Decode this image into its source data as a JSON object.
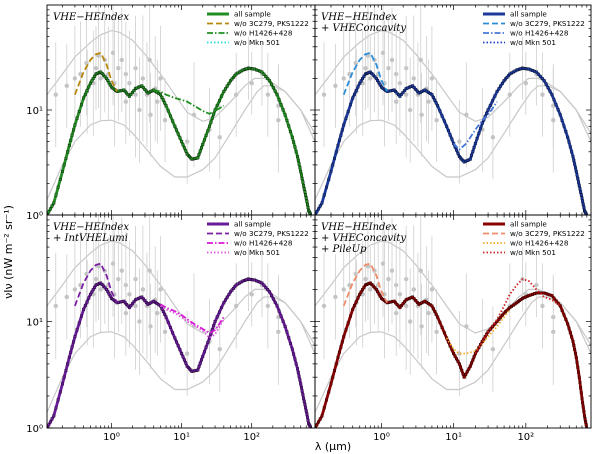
{
  "chart_data": {
    "type": "line",
    "xlabel": "λ (μm)",
    "ylabel": "νIν (nW m⁻² sr⁻¹)",
    "x_scale": "log",
    "y_scale": "log",
    "xlim": [
      0.12,
      800
    ],
    "ylim": [
      1,
      100
    ],
    "x_ticks": [
      {
        "value": 1,
        "label": "10⁰"
      },
      {
        "value": 10,
        "label": "10¹"
      },
      {
        "value": 100,
        "label": "10²"
      }
    ],
    "y_ticks": [
      {
        "value": 1,
        "label": "10⁰"
      },
      {
        "value": 10,
        "label": "10¹"
      }
    ],
    "reference_curves": {
      "color": "#c8c8c8",
      "upper_x": [
        0.12,
        0.2,
        0.3,
        0.5,
        0.7,
        1.0,
        1.3,
        2,
        3,
        5,
        8,
        12,
        20,
        30,
        50,
        80,
        110,
        150,
        200,
        300,
        500,
        800
      ],
      "upper_y": [
        14,
        22,
        32,
        44,
        52,
        57,
        55,
        46,
        34,
        22,
        14,
        9.5,
        7.8,
        8.5,
        12,
        17,
        20,
        20,
        18,
        15,
        10,
        6
      ],
      "lower_x": [
        0.12,
        0.2,
        0.3,
        0.5,
        0.7,
        1.0,
        1.5,
        2,
        3,
        5,
        8,
        12,
        20,
        30,
        50,
        80,
        120,
        150,
        200,
        300,
        500,
        800
      ],
      "lower_y": [
        1.4,
        3,
        5,
        7.2,
        7.9,
        8.0,
        7.2,
        6.0,
        4.4,
        2.9,
        2.3,
        2.3,
        2.7,
        3.5,
        6,
        10,
        15,
        17,
        17,
        15,
        10,
        5
      ],
      "points": [
        [
          0.16,
          14,
          0.5
        ],
        [
          0.23,
          17,
          0.4
        ],
        [
          0.3,
          20,
          0.5
        ],
        [
          0.36,
          22,
          0.5
        ],
        [
          0.44,
          28,
          0.5
        ],
        [
          0.45,
          15,
          0.4
        ],
        [
          0.55,
          18,
          0.5
        ],
        [
          0.6,
          25,
          0.4
        ],
        [
          0.65,
          33,
          0.5
        ],
        [
          0.7,
          20,
          0.4
        ],
        [
          0.8,
          30,
          0.5
        ],
        [
          0.9,
          22,
          0.45
        ],
        [
          1.05,
          35,
          0.5
        ],
        [
          1.1,
          18,
          0.6
        ],
        [
          1.25,
          25,
          0.5
        ],
        [
          1.4,
          30,
          0.5
        ],
        [
          1.6,
          22,
          0.5
        ],
        [
          1.6,
          12,
          0.4
        ],
        [
          1.8,
          18,
          0.5
        ],
        [
          2.2,
          25,
          0.5
        ],
        [
          2.2,
          14,
          0.6
        ],
        [
          2.5,
          10,
          0.5
        ],
        [
          2.8,
          20,
          0.6
        ],
        [
          3.2,
          14,
          0.5
        ],
        [
          3.5,
          30,
          0.6
        ],
        [
          3.6,
          9,
          0.4
        ],
        [
          4.2,
          16,
          0.5
        ],
        [
          4.5,
          12,
          0.4
        ],
        [
          5.0,
          20,
          0.5
        ],
        [
          5.8,
          8,
          0.4
        ],
        [
          12,
          5,
          0.4
        ],
        [
          15,
          9,
          0.5
        ],
        [
          25,
          6.5,
          0.4
        ],
        [
          35,
          5.5,
          0.4
        ],
        [
          60,
          14,
          0.4
        ],
        [
          90,
          25,
          0.3
        ],
        [
          100,
          18,
          0.3
        ],
        [
          140,
          22,
          0.3
        ],
        [
          170,
          14,
          0.4
        ],
        [
          240,
          11,
          0.4
        ],
        [
          240,
          8,
          0.5
        ]
      ]
    },
    "panels": [
      {
        "title_lines": [
          "VHE−HEIndex"
        ],
        "legend": [
          "all sample",
          "w/o 3C279, PKS1222",
          "w/o H1426+428",
          "w/o Mkn 501"
        ],
        "colors": {
          "all": "#228b22",
          "wo_3c": "#b8860b",
          "wo_h1426": "#1f8f1f",
          "wo_mkn": "#22d8d8"
        },
        "series": [
          {
            "name": "all sample",
            "style": "solid-markers",
            "x": [
              0.12,
              0.15,
              0.2,
              0.25,
              0.3,
              0.4,
              0.5,
              0.6,
              0.7,
              0.85,
              1.0,
              1.2,
              1.5,
              1.8,
              2.2,
              2.7,
              3.3,
              4.0,
              5.0,
              6.0,
              8.0,
              10,
              12,
              14,
              17,
              20,
              25,
              30,
              40,
              50,
              60,
              75,
              90,
              110,
              140,
              180,
              230,
              300,
              380,
              450,
              500,
              550,
              600,
              650,
              700
            ],
            "y": [
              1.0,
              1.3,
              2.6,
              4.6,
              7.2,
              13,
              18,
              22,
              23,
              20,
              16.5,
              15,
              15.5,
              13.5,
              16,
              17,
              14.5,
              15.5,
              14,
              11,
              7,
              5,
              3.8,
              3.4,
              3.5,
              4.7,
              7,
              10,
              15,
              19,
              22,
              24,
              25,
              24.5,
              23,
              19,
              14,
              9,
              5.5,
              3.6,
              2.6,
              1.9,
              1.45,
              1.1,
              1.0
            ]
          },
          {
            "name": "w/o 3C279, PKS1222",
            "style": "dashed",
            "x": [
              0.3,
              0.4,
              0.5,
              0.6,
              0.7,
              0.85,
              1.0,
              1.2
            ],
            "y": [
              14,
              23,
              30,
              34,
              35,
              27,
              19,
              15
            ]
          },
          {
            "name": "w/o H1426+428",
            "style": "dashdot",
            "x": [
              4.0,
              5.0,
              6.0,
              8.0,
              10,
              12,
              15,
              20,
              25,
              30,
              40
            ],
            "y": [
              15.5,
              15,
              14,
              13,
              12.5,
              12,
              11,
              9.8,
              9.2,
              9.8,
              11
            ]
          },
          {
            "name": "w/o Mkn 501",
            "style": "dotted",
            "x": [],
            "y": []
          }
        ]
      },
      {
        "title_lines": [
          "VHE−HEIndex",
          "+ VHEConcavity"
        ],
        "legend": [
          "all sample",
          "w/o 3C279, PKS1222",
          "w/o H1426+428",
          "w/o Mkn 501"
        ],
        "colors": {
          "all": "#1c3a9e",
          "wo_3c": "#2a8fd8",
          "wo_h1426": "#4a78d8",
          "wo_mkn": "#1f3fbf"
        },
        "series": [
          {
            "name": "all sample",
            "style": "solid-markers",
            "x": [
              0.12,
              0.15,
              0.2,
              0.25,
              0.3,
              0.4,
              0.5,
              0.6,
              0.7,
              0.85,
              1.0,
              1.2,
              1.5,
              1.8,
              2.2,
              2.7,
              3.3,
              4.0,
              5.0,
              6.0,
              8.0,
              10,
              12,
              14,
              17,
              20,
              25,
              30,
              40,
              50,
              60,
              75,
              90,
              110,
              140,
              180,
              230,
              300,
              380,
              450,
              500,
              550,
              600,
              650,
              700
            ],
            "y": [
              1.0,
              1.3,
              2.6,
              4.6,
              7.2,
              13,
              18,
              22,
              23,
              20,
              16.5,
              15,
              15.5,
              13.5,
              16,
              17,
              14.5,
              15.5,
              14,
              11,
              7,
              4.8,
              3.6,
              3.2,
              3.4,
              4.8,
              7.5,
              10,
              15,
              19,
              22,
              24,
              25,
              24.5,
              23,
              19,
              14,
              9,
              5.5,
              3.6,
              2.6,
              1.9,
              1.45,
              1.1,
              1.0
            ]
          },
          {
            "name": "w/o 3C279, PKS1222",
            "style": "dashed",
            "x": [
              0.3,
              0.4,
              0.5,
              0.6,
              0.7,
              0.85,
              1.0,
              1.2
            ],
            "y": [
              14,
              23,
              30,
              34,
              35,
              27,
              19,
              15
            ]
          },
          {
            "name": "w/o H1426+428",
            "style": "dashdot",
            "x": [
              10,
              12,
              15,
              20,
              25,
              30,
              40
            ],
            "y": [
              4.8,
              4.2,
              4.8,
              6.5,
              8,
              9,
              12
            ]
          },
          {
            "name": "w/o Mkn 501",
            "style": "dotted",
            "x": [],
            "y": []
          }
        ]
      },
      {
        "title_lines": [
          "VHE−HEIndex",
          "+ IntVHELumi"
        ],
        "legend": [
          "all sample",
          "w/o 3C279, PKS1222",
          "w/o H1426+428",
          "w/o Mkn 501"
        ],
        "colors": {
          "all": "#6a1b9a",
          "wo_3c": "#7b1fa2",
          "wo_h1426": "#d81bd8",
          "wo_mkn": "#e056e0"
        },
        "series": [
          {
            "name": "all sample",
            "style": "solid-markers",
            "x": [
              0.12,
              0.15,
              0.2,
              0.25,
              0.3,
              0.4,
              0.5,
              0.6,
              0.7,
              0.85,
              1.0,
              1.2,
              1.5,
              1.8,
              2.2,
              2.7,
              3.3,
              4.0,
              5.0,
              6.0,
              8.0,
              10,
              12,
              14,
              17,
              20,
              25,
              30,
              40,
              50,
              60,
              75,
              90,
              110,
              140,
              180,
              230,
              300,
              380,
              450,
              500,
              550,
              600,
              650,
              700
            ],
            "y": [
              1.0,
              1.3,
              2.6,
              4.6,
              7.2,
              13,
              18,
              22,
              23,
              20,
              16.5,
              15,
              15.5,
              13.5,
              16,
              17,
              14.5,
              15.5,
              14,
              11,
              7,
              5,
              3.8,
              3.4,
              3.5,
              4.7,
              7,
              10,
              15,
              19,
              22,
              24,
              25,
              24.5,
              23,
              19,
              14,
              9,
              5.5,
              3.6,
              2.6,
              1.9,
              1.45,
              1.1,
              1.0
            ]
          },
          {
            "name": "w/o 3C279, PKS1222",
            "style": "dashed",
            "x": [
              0.3,
              0.4,
              0.5,
              0.6,
              0.7,
              0.85,
              1.0,
              1.2
            ],
            "y": [
              14,
              23,
              30,
              34,
              35,
              27,
              19,
              15
            ]
          },
          {
            "name": "w/o H1426+428",
            "style": "dashdot",
            "x": [
              5.0,
              6.0,
              8.0,
              10,
              12,
              15,
              20,
              25,
              30,
              40
            ],
            "y": [
              14.5,
              13.5,
              12.5,
              11.5,
              10.5,
              9.5,
              8.5,
              7.8,
              8.3,
              11
            ]
          },
          {
            "name": "w/o Mkn 501",
            "style": "dotted",
            "x": [
              5.0,
              6.0,
              8.0,
              10,
              12,
              15,
              20,
              25,
              30,
              40
            ],
            "y": [
              14,
              13,
              12,
              11,
              10,
              9.2,
              8.2,
              7.0,
              7.6,
              10.5
            ]
          }
        ]
      },
      {
        "title_lines": [
          "VHE−HEIndex",
          "+ VHEConcavity",
          "+ PileUp"
        ],
        "legend": [
          "all sample",
          "w/o 3C279, PKS1222",
          "w/o H1426+428",
          "w/o Mkn 501"
        ],
        "colors": {
          "all": "#8b0000",
          "wo_3c": "#f08a6a",
          "wo_h1426": "#f5a623",
          "wo_mkn": "#cc2222"
        },
        "series": [
          {
            "name": "all sample",
            "style": "solid-markers",
            "x": [
              0.12,
              0.15,
              0.2,
              0.25,
              0.3,
              0.4,
              0.5,
              0.6,
              0.7,
              0.85,
              1.0,
              1.2,
              1.5,
              1.8,
              2.2,
              2.7,
              3.3,
              4.0,
              5.0,
              6.0,
              8.0,
              10,
              12,
              14,
              17,
              20,
              25,
              30,
              40,
              50,
              60,
              75,
              90,
              110,
              140,
              180,
              230,
              300,
              380,
              450,
              500,
              550,
              600,
              650,
              700
            ],
            "y": [
              1.0,
              1.3,
              2.6,
              4.6,
              7.2,
              13,
              18,
              22,
              23,
              20,
              16.5,
              15,
              15.5,
              13.5,
              16,
              17,
              14.5,
              15.5,
              14,
              11,
              7,
              5,
              4,
              3,
              3.8,
              5,
              6.5,
              8,
              10,
              12,
              13.5,
              15,
              16.5,
              17.5,
              18.5,
              18.5,
              17.5,
              14,
              9.5,
              6.5,
              4.6,
              3.0,
              1.9,
              1.3,
              1.0
            ]
          },
          {
            "name": "w/o 3C279, PKS1222",
            "style": "dashed",
            "x": [
              0.3,
              0.4,
              0.5,
              0.6,
              0.7,
              0.85,
              1.0,
              1.2
            ],
            "y": [
              14,
              23,
              30,
              34,
              35,
              27,
              19,
              15
            ]
          },
          {
            "name": "w/o H1426+428",
            "style": "dotted",
            "x": [
              8.0,
              10,
              12,
              15,
              20,
              25,
              30,
              40,
              50,
              60
            ],
            "y": [
              7,
              5.5,
              5.0,
              5.0,
              5.3,
              6.2,
              7.2,
              9,
              11,
              13
            ]
          },
          {
            "name": "w/o Mkn 501",
            "style": "dotted",
            "x": [
              20,
              25,
              30,
              40,
              50,
              60,
              75,
              90,
              110,
              140,
              180,
              230,
              300
            ],
            "y": [
              5,
              6.5,
              8,
              10.5,
              14,
              18,
              22,
              25,
              24,
              20,
              17,
              16,
              14
            ]
          }
        ]
      }
    ]
  }
}
